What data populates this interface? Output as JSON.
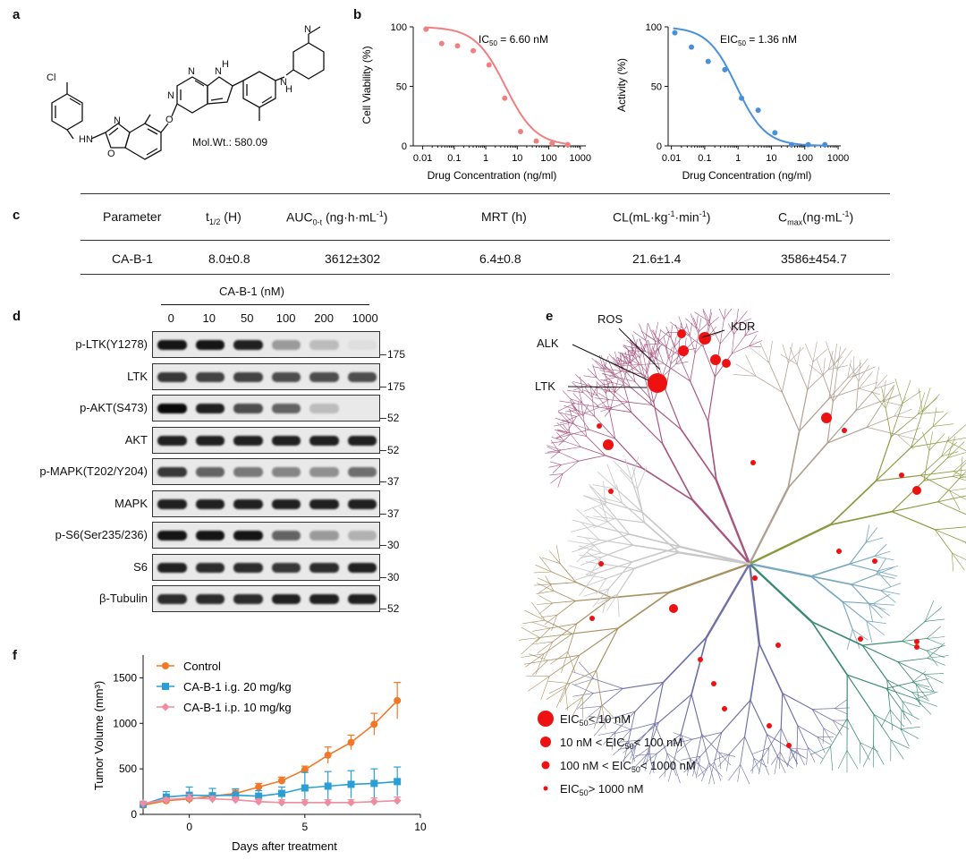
{
  "panel_labels": {
    "a": "a",
    "b": "b",
    "c": "c",
    "d": "d",
    "e": "e",
    "f": "f"
  },
  "panel_a": {
    "atoms": {
      "cl": "Cl",
      "n1": "N",
      "n2": "N",
      "n3": "N",
      "h1": "H",
      "hn1": "HN",
      "o1": "O",
      "o2": "O",
      "hn2": "H",
      "n4": "N",
      "nh": "N",
      "n5": "N"
    },
    "mol_wt": "Mol.Wt.: 580.09"
  },
  "chart_data": [
    {
      "type": "scatter",
      "id": "viability",
      "annotation": "IC50 = 6.60 nM",
      "annotation_main": "IC",
      "annotation_sub": "50",
      "annotation_rest": " = 6.60 nM",
      "xlabel": "Drug Concentration (ng/ml)",
      "ylabel": "Cell Viability (%)",
      "xscale": "log",
      "xlim": [
        0.005,
        1500
      ],
      "ylim": [
        0,
        100
      ],
      "xticks": [
        "0.01",
        "0.1",
        "1",
        "10",
        "100",
        "1000"
      ],
      "yticks": [
        "0",
        "50",
        "100"
      ],
      "color": "#f08080",
      "x": [
        0.0127,
        0.04,
        0.127,
        0.4,
        1.27,
        4,
        12.7,
        40,
        127,
        400
      ],
      "y": [
        98,
        86,
        84,
        80,
        68,
        40,
        12,
        4,
        2,
        1
      ],
      "fit": {
        "top": 100,
        "bottom": 0,
        "ic50": 4.2,
        "hill": 0.9
      }
    },
    {
      "type": "scatter",
      "id": "activity",
      "annotation": "EIC50 = 1.36 nM",
      "annotation_main": "EIC",
      "annotation_sub": "50",
      "annotation_rest": " = 1.36 nM",
      "xlabel": "Drug Concentration (ng/ml)",
      "ylabel": "Activity (%)",
      "xscale": "log",
      "xlim": [
        0.008,
        1200
      ],
      "ylim": [
        0,
        100
      ],
      "xticks": [
        "0.01",
        "0.1",
        "1",
        "10",
        "100",
        "1000"
      ],
      "yticks": [
        "0",
        "50",
        "100"
      ],
      "color": "#4a90d9",
      "x": [
        0.0127,
        0.04,
        0.127,
        0.4,
        1.27,
        4,
        12.7,
        40,
        127,
        400
      ],
      "y": [
        95,
        83,
        71,
        64,
        40,
        30,
        11,
        1,
        1,
        1
      ],
      "fit": {
        "top": 100,
        "bottom": 0,
        "ic50": 0.9,
        "hill": 1.0
      }
    },
    {
      "type": "line",
      "id": "tumor",
      "xlabel": "Days after treatment",
      "ylabel": "Tumor Volume (mm³)",
      "xlim": [
        -2,
        10
      ],
      "ylim": [
        0,
        1750
      ],
      "xticks": [
        "0",
        "5",
        "10"
      ],
      "yticks": [
        "0",
        "500",
        "1000",
        "1500"
      ],
      "x": [
        -2,
        -1,
        0,
        1,
        2,
        3,
        4,
        5,
        6,
        7,
        8,
        9
      ],
      "series": [
        {
          "name": "Control",
          "color": "#f07828",
          "marker": "circle",
          "values": [
            100,
            150,
            170,
            200,
            230,
            300,
            370,
            490,
            650,
            790,
            990,
            1250
          ],
          "err": [
            20,
            25,
            30,
            30,
            35,
            40,
            40,
            40,
            90,
            80,
            120,
            200
          ]
        },
        {
          "name": "CA-B-1 i.g. 20 mg/kg",
          "color": "#2a9fd6",
          "marker": "square",
          "values": [
            110,
            190,
            210,
            205,
            210,
            200,
            230,
            290,
            310,
            330,
            340,
            360
          ],
          "err": [
            30,
            60,
            90,
            80,
            70,
            60,
            70,
            170,
            160,
            150,
            160,
            160
          ]
        },
        {
          "name": "CA-B-1 i.p. 10 mg/kg",
          "color": "#f08ca0",
          "marker": "diamond",
          "values": [
            120,
            160,
            180,
            170,
            160,
            140,
            130,
            130,
            130,
            130,
            140,
            150
          ],
          "err": [
            20,
            20,
            40,
            30,
            30,
            30,
            30,
            30,
            30,
            30,
            40,
            40
          ]
        }
      ]
    }
  ],
  "panel_c": {
    "headers": [
      {
        "main": "Parameter",
        "sub": "",
        "rest": ""
      },
      {
        "main": "t",
        "sub": "1/2",
        "rest": " (H)"
      },
      {
        "main": "AUC",
        "sub": "0-t",
        "rest": " (ng·h·mL",
        "sup": "-1",
        "end": ")"
      },
      {
        "main": "MRT (h)",
        "sub": "",
        "rest": ""
      },
      {
        "main": "CL(mL·kg",
        "sup": "-1",
        "mid": "·min",
        "sup2": "-1",
        "end": ")"
      },
      {
        "main": "C",
        "sub": "max",
        "rest": "(ng·mL",
        "sup": "-1",
        "end": ")"
      }
    ],
    "row": [
      "CA-B-1",
      "8.0±0.8",
      "3612±302",
      "6.4±0.8",
      "21.6±1.4",
      "3586±454.7"
    ]
  },
  "panel_d": {
    "title": "CA-B-1 (nM)",
    "doses": [
      "0",
      "10",
      "50",
      "100",
      "200",
      "1000"
    ],
    "rows": [
      {
        "label": "p-LTK(Y1278)",
        "kd": "175",
        "intensity": [
          0.95,
          0.95,
          0.9,
          0.35,
          0.2,
          0.05
        ]
      },
      {
        "label": "LTK",
        "kd": "175",
        "intensity": [
          0.8,
          0.75,
          0.75,
          0.7,
          0.7,
          0.7
        ]
      },
      {
        "label": "p-AKT(S473)",
        "kd": "52",
        "intensity": [
          1.0,
          0.9,
          0.7,
          0.6,
          0.2,
          0.0
        ]
      },
      {
        "label": "AKT",
        "kd": "52",
        "intensity": [
          0.9,
          0.9,
          0.9,
          0.9,
          0.9,
          0.9
        ]
      },
      {
        "label": "p-MAPK(T202/Y204)",
        "kd": "37",
        "intensity": [
          0.8,
          0.6,
          0.5,
          0.45,
          0.4,
          0.55
        ]
      },
      {
        "label": "MAPK",
        "kd": "37",
        "intensity": [
          0.9,
          0.9,
          0.9,
          0.9,
          0.9,
          0.9
        ]
      },
      {
        "label": "p-S6(Ser235/236)",
        "kd": "30",
        "intensity": [
          0.95,
          0.95,
          0.95,
          0.6,
          0.35,
          0.25
        ]
      },
      {
        "label": "S6",
        "kd": "30",
        "intensity": [
          0.9,
          0.85,
          0.85,
          0.8,
          0.85,
          0.9
        ]
      },
      {
        "label": "β-Tubulin",
        "kd": "52",
        "intensity": [
          0.85,
          0.85,
          0.85,
          0.9,
          0.9,
          0.9
        ]
      }
    ]
  },
  "panel_e": {
    "labels": {
      "ros": "ROS",
      "kdr": "KDR",
      "alk": "ALK",
      "ltk": "LTK"
    },
    "legend": [
      {
        "main": "EIC",
        "sub": "50",
        "rest": "< 10 nM",
        "size": "xl"
      },
      {
        "main": "10 nM < EIC",
        "sub": "50",
        "rest": "< 100 nM",
        "size": "l"
      },
      {
        "main": "100 nM < EIC",
        "sub": "50",
        "rest": "< 1000 nM",
        "size": "m"
      },
      {
        "main": "EIC",
        "sub": "50",
        "rest": "> 1000 nM",
        "size": "s"
      }
    ],
    "colors": {
      "tk": "#a8557f",
      "tkl": "#b0a090",
      "ste": "#8a9a40",
      "ck1": "#7aa8c0",
      "agc": "#3a8a70",
      "camk": "#7070a8",
      "cmgc": "#a89060",
      "other": "#c8c8c8",
      "dot": "#ee1111"
    }
  }
}
